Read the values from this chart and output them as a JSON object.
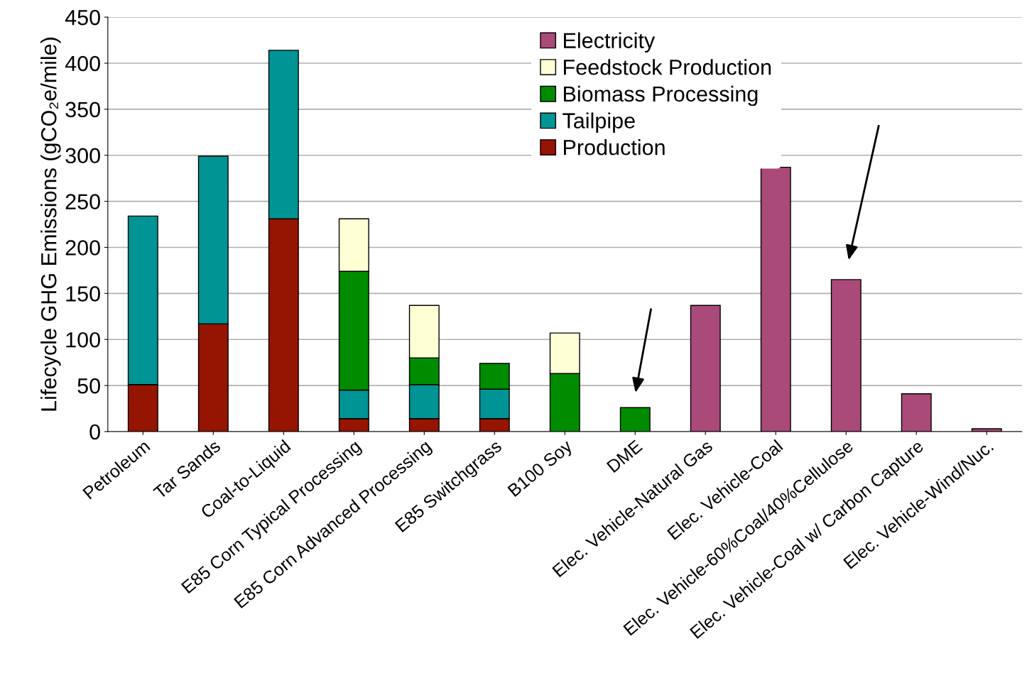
{
  "chart_data": {
    "type": "bar",
    "stacked": true,
    "ylabel": "Lifecycle GHG Emissions (gCO₂e/mile)",
    "categories": [
      "Petroleum",
      "Tar Sands",
      "Coal-to-Liquid",
      "E85 Corn Typical Processing",
      "E85 Corn Advanced Processing",
      "E85 Switchgrass",
      "B100 Soy",
      "DME",
      "Elec. Vehicle-Natural Gas",
      "Elec. Vehicle-Coal",
      "Elec. Vehicle-60%Coal/40%Cellulose",
      "Elec. Vehicle-Coal w/ Carbon Capture",
      "Elec. Vehicle-Wind/Nuc."
    ],
    "series": [
      {
        "name": "Production",
        "color": "#951500",
        "values": [
          51,
          117,
          231,
          14,
          14,
          14,
          null,
          null,
          null,
          null,
          null,
          null,
          null
        ]
      },
      {
        "name": "Tailpipe",
        "color": "#009494",
        "values": [
          183,
          182,
          183,
          31,
          37,
          32,
          null,
          null,
          null,
          null,
          null,
          null,
          null
        ]
      },
      {
        "name": "Biomass Processing",
        "color": "#008c00",
        "values": [
          null,
          null,
          null,
          129,
          29,
          28,
          63,
          26,
          null,
          null,
          null,
          null,
          null
        ]
      },
      {
        "name": "Feedstock Production",
        "color": "#ffffd6",
        "values": [
          null,
          null,
          null,
          57,
          57,
          null,
          44,
          null,
          null,
          null,
          null,
          null,
          null
        ]
      },
      {
        "name": "Electricity",
        "color": "#aa4a78",
        "values": [
          null,
          null,
          null,
          null,
          null,
          null,
          null,
          null,
          137,
          287,
          165,
          41,
          3
        ]
      }
    ],
    "ylim": [
      0,
      450
    ],
    "yticks": [
      0,
      50,
      100,
      150,
      200,
      250,
      300,
      350,
      400,
      450
    ],
    "grid": "y",
    "legend": "top"
  }
}
